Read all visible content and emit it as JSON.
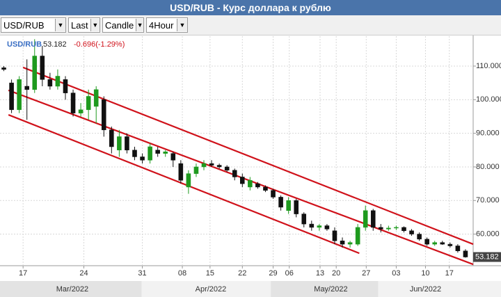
{
  "title": "USD/RUB - Курс доллара к рублю",
  "toolbar": [
    "USD/RUB",
    "Last",
    "Candle",
    "4Hour"
  ],
  "chart_data": {
    "type": "candlestick",
    "last_price": 53.182,
    "change": "-0.696(-1.29%)",
    "up_color": "#1e9a1e",
    "down_color": "#111111",
    "channel_color": "#d0121b",
    "grid": true,
    "series": [
      {
        "name": "USD/RUB",
        "open": [
          109.5,
          105,
          97,
          104,
          103,
          113,
          106,
          104,
          106,
          102,
          96,
          97,
          98,
          100,
          91,
          85,
          89,
          85,
          83,
          82,
          85,
          84,
          84,
          81,
          74,
          78,
          80,
          81,
          80.5,
          80,
          79,
          77,
          74,
          75,
          74,
          73,
          71,
          67,
          70,
          66,
          63,
          62,
          62.5,
          61,
          58,
          57,
          57,
          62,
          67,
          62,
          61.5,
          61.8,
          62,
          61,
          60,
          58.5,
          57,
          57.5,
          57,
          56.5,
          55
        ],
        "high": [
          110,
          106,
          107,
          112,
          118,
          116,
          108,
          109,
          107,
          103,
          99,
          103,
          104,
          101,
          92,
          91,
          90,
          86,
          84,
          87,
          86,
          85,
          84.5,
          82,
          79,
          81,
          82,
          82,
          81,
          80.5,
          79.5,
          78,
          77,
          75.5,
          74.5,
          73.5,
          71.5,
          71,
          70.5,
          66.5,
          64,
          63,
          63,
          62,
          59,
          58,
          63,
          68.5,
          67.5,
          63,
          62.5,
          62.5,
          62.3,
          61.5,
          60.5,
          59,
          58,
          58,
          57.5,
          57,
          55.5
        ],
        "low": [
          108.5,
          96,
          96,
          94,
          102,
          104,
          103,
          103,
          100,
          95,
          95,
          94,
          93,
          89,
          84,
          83,
          84,
          82,
          81,
          81,
          83,
          83,
          80,
          75,
          72,
          77,
          79,
          80,
          79.5,
          78.5,
          76,
          74,
          73,
          73.5,
          72.5,
          70.5,
          67,
          66,
          65,
          62,
          61,
          61,
          61,
          57,
          56,
          56,
          56.5,
          61,
          61,
          60.5,
          61,
          61.2,
          60.5,
          59.5,
          58,
          56.5,
          56.5,
          56.8,
          56,
          54.5,
          53
        ],
        "close": [
          109,
          97,
          106,
          103,
          113,
          106,
          104,
          107,
          102,
          96,
          97,
          101,
          103,
          91,
          86,
          89,
          85,
          83,
          82,
          86,
          84,
          84.5,
          82,
          76,
          78,
          80,
          81,
          80.5,
          80,
          79,
          77,
          75,
          76,
          74,
          73,
          71,
          68,
          70,
          66,
          63,
          62,
          62.5,
          61.5,
          58,
          57,
          57.5,
          62,
          67,
          62,
          61.5,
          61.8,
          62,
          61,
          60,
          58.5,
          57,
          57.5,
          57,
          56.5,
          55,
          53.182
        ]
      }
    ],
    "xlim": [
      -0.5,
      61
    ],
    "xticks": [
      {
        "value": 2.5,
        "label": "17"
      },
      {
        "value": 10.4,
        "label": "24"
      },
      {
        "value": 18,
        "label": "31"
      },
      {
        "value": 23.2,
        "label": "08"
      },
      {
        "value": 26.8,
        "label": "15"
      },
      {
        "value": 31,
        "label": "22"
      },
      {
        "value": 35,
        "label": "29"
      },
      {
        "value": 37.1,
        "label": "06"
      },
      {
        "value": 41.1,
        "label": "13"
      },
      {
        "value": 43.2,
        "label": "20"
      },
      {
        "value": 47.1,
        "label": "27"
      },
      {
        "value": 51,
        "label": "03"
      },
      {
        "value": 54.8,
        "label": "10"
      },
      {
        "value": 57.9,
        "label": "17"
      }
    ],
    "month_ticks": [
      {
        "value": 8.9,
        "label": "Mar/2022"
      },
      {
        "value": 26.9,
        "label": "Apr/2022"
      },
      {
        "value": 42.5,
        "label": "May/2022"
      },
      {
        "value": 54.8,
        "label": "Jun/2022"
      }
    ],
    "ylim": [
      50.6,
      118.9
    ],
    "yticks": [
      {
        "value": 60,
        "label": "60.000"
      },
      {
        "value": 70,
        "label": "70.000"
      },
      {
        "value": 80,
        "label": "80.000"
      },
      {
        "value": 90,
        "label": "90.000"
      },
      {
        "value": 100,
        "label": "100.000"
      },
      {
        "value": 110,
        "label": "110.000"
      }
    ],
    "trendlines": [
      {
        "x": [
          2.5,
          61
        ],
        "y": [
          109.6,
          57
        ]
      },
      {
        "x": [
          0.6,
          61
        ],
        "y": [
          102.8,
          51
        ]
      },
      {
        "x": [
          0.6,
          46.2
        ],
        "y": [
          95.5,
          54.3
        ]
      }
    ]
  }
}
